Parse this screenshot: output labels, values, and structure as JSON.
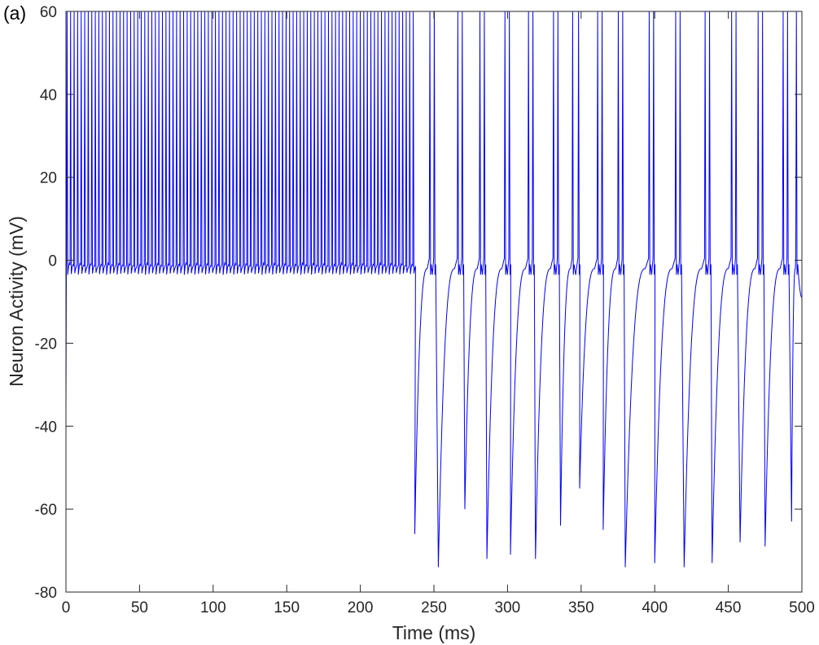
{
  "chart_data": {
    "type": "line",
    "panel_label": "(a)",
    "title": "",
    "xlabel": "Time (ms)",
    "ylabel": "Neuron Activity (mV)",
    "xlim": [
      0,
      500
    ],
    "ylim": [
      -80,
      60
    ],
    "xticks": [
      0,
      50,
      100,
      150,
      200,
      250,
      300,
      350,
      400,
      450,
      500
    ],
    "yticks": [
      -80,
      -60,
      -40,
      -20,
      0,
      20,
      40,
      60
    ],
    "grid": false,
    "legend": "none",
    "line_color": "#0000ff",
    "tonic_phase": {
      "x_range": [
        0,
        237
      ],
      "spike_interval_ms": 2.4,
      "peak_mV": 60,
      "baseline_mV": -1.5,
      "trough_mV": -3.5,
      "initial_value_mV": -36
    },
    "burst_phase": {
      "spike_times_ms": [
        247,
        250,
        266,
        269,
        281,
        284,
        298,
        301,
        314,
        317,
        331,
        334,
        344,
        348,
        361,
        364,
        375,
        378,
        396,
        399,
        414,
        417,
        434,
        437,
        452,
        455,
        470,
        473,
        487,
        490,
        496
      ],
      "trough_times_ms": [
        237,
        253,
        271,
        286,
        302,
        319,
        336,
        349,
        365,
        380,
        400,
        420,
        439,
        458,
        475,
        493
      ],
      "trough_values_mV": [
        -66,
        -74,
        -60,
        -72,
        -71,
        -72,
        -64,
        -55,
        -65,
        -74,
        -73,
        -74,
        -73,
        -68,
        -69,
        -63
      ],
      "end_value_mV": -9
    }
  }
}
